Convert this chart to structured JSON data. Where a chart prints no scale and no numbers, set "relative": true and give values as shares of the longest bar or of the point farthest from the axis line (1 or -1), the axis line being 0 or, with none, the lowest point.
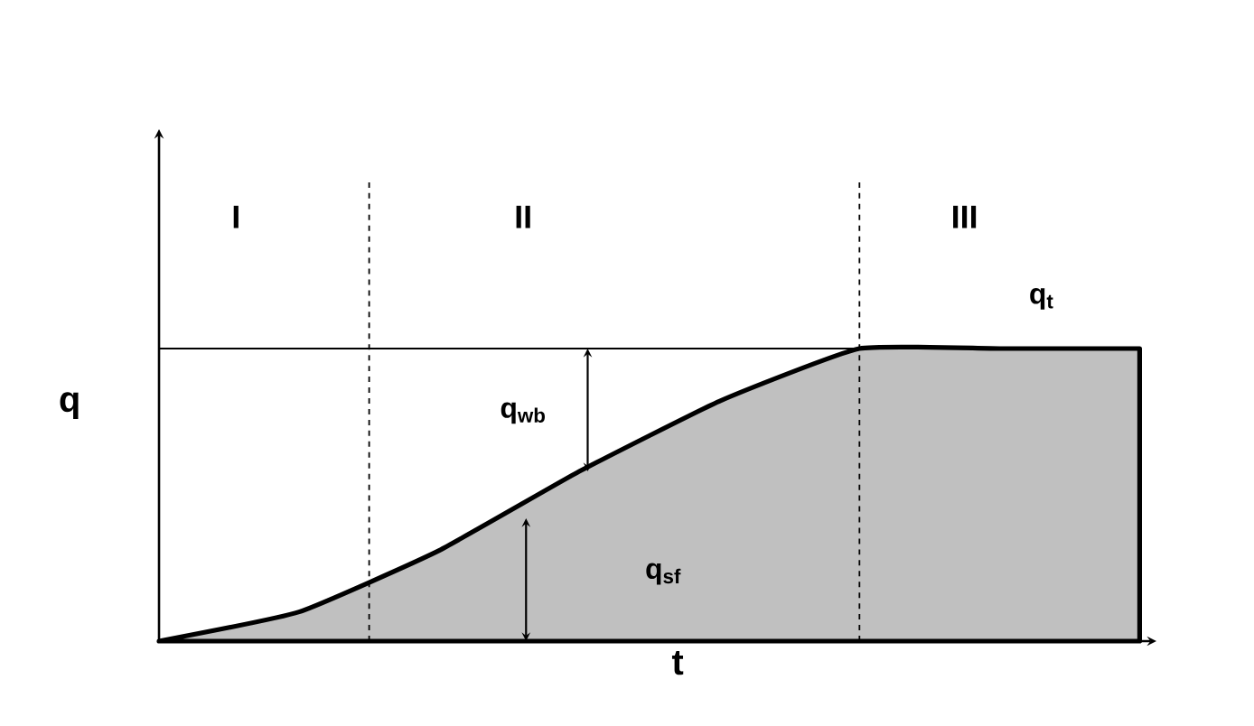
{
  "chart_data": {
    "type": "area",
    "relative": true,
    "xlabel": "t",
    "ylabel": "q",
    "categories": [
      null,
      null,
      null,
      null,
      null,
      null,
      null,
      null
    ],
    "series": [
      {
        "color": "#c0c0c0",
        "values": [
          0,
          0.1,
          0.31,
          0.58,
          0.82,
          1,
          1,
          1
        ]
      }
    ],
    "ref_lines": [
      {
        "axis": "y",
        "value": 1,
        "line_style": "solid",
        "color": "#000000"
      }
    ],
    "annotations": [
      "I",
      "II",
      "III",
      "q$_{t}$",
      "q$_{wb}$",
      "q$_{sf}$"
    ],
    "marker": "none"
  }
}
